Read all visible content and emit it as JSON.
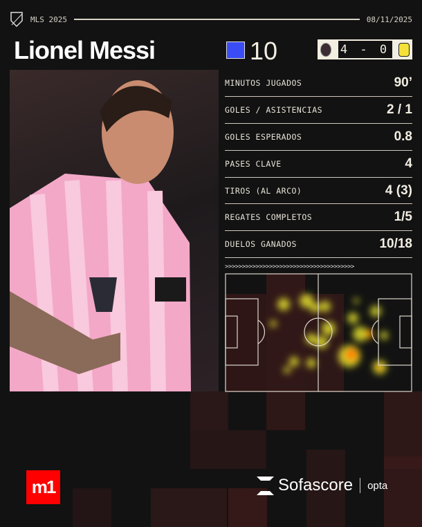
{
  "header": {
    "league": "MLS 2025",
    "date": "08/11/2025",
    "league_logo": "mls-crest-icon"
  },
  "player": {
    "name": "Lionel Messi",
    "number": "10",
    "number_color": "#3a4cf5"
  },
  "match": {
    "score": "4 - 0",
    "home_crest": "inter-miami-crest-icon",
    "away_crest": "nashville-sc-crest-icon"
  },
  "stats": [
    {
      "label": "MINUTOS JUGADOS",
      "value": "90’"
    },
    {
      "label": "GOLES / ASISTENCIAS",
      "value": "2 / 1"
    },
    {
      "label": "GOLES ESPERADOS",
      "value": "0.8"
    },
    {
      "label": "PASES CLAVE",
      "value": "4"
    },
    {
      "label": "TIROS (AL ARCO)",
      "value": "4 (3)"
    },
    {
      "label": "REGATES COMPLETOS",
      "value": "1/5"
    },
    {
      "label": "DUELOS GANADOS",
      "value": "10/18"
    }
  ],
  "heatmap": {
    "direction_arrows": ">>>>>>>>>>>>>>>>>>>>>>>>>>>>>>>>>>>>>>",
    "colors": [
      "#ffff33",
      "#ff9900",
      "#ff5a00"
    ]
  },
  "footer": {
    "m1_logo": "m1",
    "sofascore": "Sofascore",
    "opta": "opta"
  }
}
